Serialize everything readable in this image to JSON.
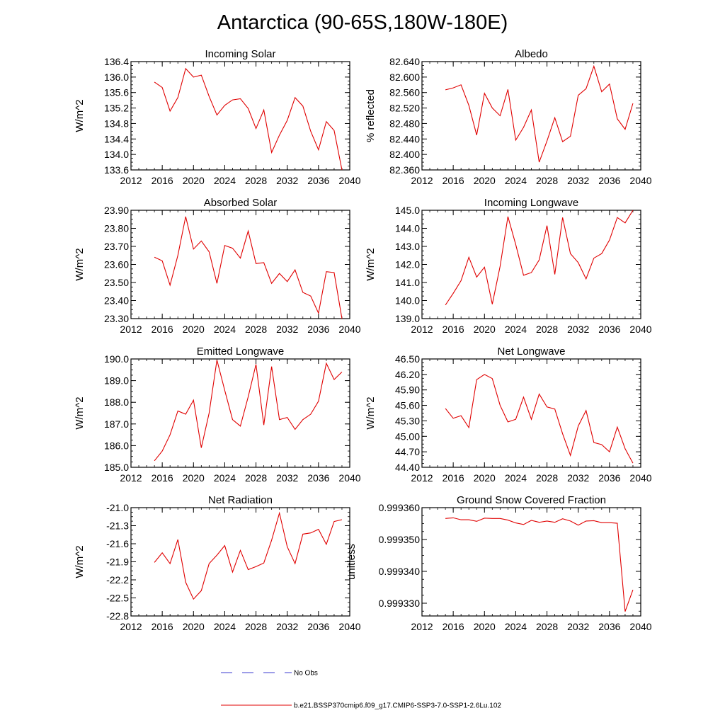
{
  "page": {
    "title": "Antarctica (90-65S,180W-180E)"
  },
  "legend": {
    "items": [
      {
        "label": "No Obs",
        "color": "#3b3bd0",
        "dash": true
      },
      {
        "label": "b.e21.BSSP370cmip6.f09_g17.CMIP6-SSP3-7.0-SSP1-2.6Lu.102",
        "color": "#e00000",
        "dash": false
      }
    ]
  },
  "colors": {
    "series": "#e00000",
    "no_obs": "#3b3bd0",
    "axis": "#000000"
  },
  "chart_data": [
    {
      "id": "incoming-solar",
      "type": "line",
      "title": "Incoming Solar",
      "ylabel": "W/m^2",
      "xlim": [
        2012,
        2040
      ],
      "ylim": [
        133.6,
        136.4
      ],
      "xticks": [
        "2012",
        "2016",
        "2020",
        "2024",
        "2028",
        "2032",
        "2036",
        "2040"
      ],
      "yticks": [
        "133.6",
        "134.0",
        "134.4",
        "134.8",
        "135.2",
        "135.6",
        "136.0",
        "136.4"
      ],
      "x": [
        2015,
        2016,
        2017,
        2018,
        2019,
        2020,
        2021,
        2022,
        2023,
        2024,
        2025,
        2026,
        2027,
        2028,
        2029,
        2030,
        2031,
        2032,
        2033,
        2034,
        2035,
        2036,
        2037,
        2038,
        2039
      ],
      "series": [
        {
          "values": [
            135.87,
            135.73,
            135.12,
            135.47,
            136.22,
            136.0,
            136.05,
            135.5,
            135.02,
            135.27,
            135.41,
            135.44,
            135.19,
            134.67,
            135.15,
            134.05,
            134.5,
            134.88,
            135.47,
            135.25,
            134.6,
            134.12,
            134.85,
            134.62,
            133.6
          ]
        }
      ]
    },
    {
      "id": "albedo",
      "type": "line",
      "title": "Albedo",
      "ylabel": "% reflected",
      "xlim": [
        2012,
        2040
      ],
      "ylim": [
        82.36,
        82.64
      ],
      "xticks": [
        "2012",
        "2016",
        "2020",
        "2024",
        "2028",
        "2032",
        "2036",
        "2040"
      ],
      "yticks": [
        "82.360",
        "82.400",
        "82.440",
        "82.480",
        "82.520",
        "82.560",
        "82.600",
        "82.640"
      ],
      "x": [
        2015,
        2016,
        2017,
        2018,
        2019,
        2020,
        2021,
        2022,
        2023,
        2024,
        2025,
        2026,
        2027,
        2028,
        2029,
        2030,
        2031,
        2032,
        2033,
        2034,
        2035,
        2036,
        2037,
        2038,
        2039
      ],
      "series": [
        {
          "values": [
            82.567,
            82.572,
            82.58,
            82.527,
            82.45,
            82.558,
            82.52,
            82.5,
            82.568,
            82.437,
            82.47,
            82.515,
            82.38,
            82.435,
            82.495,
            82.433,
            82.447,
            82.553,
            82.57,
            82.628,
            82.562,
            82.582,
            82.492,
            82.465,
            82.532
          ]
        }
      ]
    },
    {
      "id": "absorbed-solar",
      "type": "line",
      "title": "Absorbed Solar",
      "ylabel": "W/m^2",
      "xlim": [
        2012,
        2040
      ],
      "ylim": [
        23.3,
        23.9
      ],
      "xticks": [
        "2012",
        "2016",
        "2020",
        "2024",
        "2028",
        "2032",
        "2036",
        "2040"
      ],
      "yticks": [
        "23.30",
        "23.40",
        "23.50",
        "23.60",
        "23.70",
        "23.80",
        "23.90"
      ],
      "x": [
        2015,
        2016,
        2017,
        2018,
        2019,
        2020,
        2021,
        2022,
        2023,
        2024,
        2025,
        2026,
        2027,
        2028,
        2029,
        2030,
        2031,
        2032,
        2033,
        2034,
        2035,
        2036,
        2037,
        2038,
        2039
      ],
      "series": [
        {
          "values": [
            23.64,
            23.62,
            23.485,
            23.65,
            23.865,
            23.685,
            23.73,
            23.67,
            23.495,
            23.705,
            23.69,
            23.635,
            23.785,
            23.605,
            23.61,
            23.495,
            23.55,
            23.505,
            23.57,
            23.445,
            23.425,
            23.33,
            23.56,
            23.555,
            23.3
          ]
        }
      ]
    },
    {
      "id": "incoming-longwave",
      "type": "line",
      "title": "Incoming Longwave",
      "ylabel": "W/m^2",
      "xlim": [
        2012,
        2040
      ],
      "ylim": [
        139.0,
        145.0
      ],
      "xticks": [
        "2012",
        "2016",
        "2020",
        "2024",
        "2028",
        "2032",
        "2036",
        "2040"
      ],
      "yticks": [
        "139.0",
        "140.0",
        "141.0",
        "142.0",
        "143.0",
        "144.0",
        "145.0"
      ],
      "x": [
        2015,
        2016,
        2017,
        2018,
        2019,
        2020,
        2021,
        2022,
        2023,
        2024,
        2025,
        2026,
        2027,
        2028,
        2029,
        2030,
        2031,
        2032,
        2033,
        2034,
        2035,
        2036,
        2037,
        2038,
        2039
      ],
      "series": [
        {
          "values": [
            139.75,
            140.4,
            141.1,
            142.4,
            141.3,
            141.85,
            139.8,
            141.9,
            144.65,
            143.1,
            141.4,
            141.55,
            142.25,
            144.15,
            141.45,
            144.6,
            142.6,
            142.1,
            141.2,
            142.35,
            142.6,
            143.35,
            144.6,
            144.3,
            145.0
          ]
        }
      ]
    },
    {
      "id": "emitted-longwave",
      "type": "line",
      "title": "Emitted Longwave",
      "ylabel": "W/m^2",
      "xlim": [
        2012,
        2040
      ],
      "ylim": [
        185.0,
        190.0
      ],
      "xticks": [
        "2012",
        "2016",
        "2020",
        "2024",
        "2028",
        "2032",
        "2036",
        "2040"
      ],
      "yticks": [
        "185.0",
        "186.0",
        "187.0",
        "188.0",
        "189.0",
        "190.0"
      ],
      "x": [
        2015,
        2016,
        2017,
        2018,
        2019,
        2020,
        2021,
        2022,
        2023,
        2024,
        2025,
        2026,
        2027,
        2028,
        2029,
        2030,
        2031,
        2032,
        2033,
        2034,
        2035,
        2036,
        2037,
        2038,
        2039
      ],
      "series": [
        {
          "values": [
            185.3,
            185.75,
            186.5,
            187.6,
            187.45,
            188.1,
            185.9,
            187.5,
            189.95,
            188.55,
            187.2,
            186.9,
            188.25,
            189.75,
            186.95,
            189.65,
            187.2,
            187.3,
            186.75,
            187.2,
            187.45,
            188.05,
            189.8,
            189.05,
            189.4
          ]
        }
      ]
    },
    {
      "id": "net-longwave",
      "type": "line",
      "title": "Net Longwave",
      "ylabel": "W/m^2",
      "xlim": [
        2012,
        2040
      ],
      "ylim": [
        44.4,
        46.5
      ],
      "xticks": [
        "2012",
        "2016",
        "2020",
        "2024",
        "2028",
        "2032",
        "2036",
        "2040"
      ],
      "yticks": [
        "44.40",
        "44.70",
        "45.00",
        "45.30",
        "45.60",
        "45.90",
        "46.20",
        "46.50"
      ],
      "x": [
        2015,
        2016,
        2017,
        2018,
        2019,
        2020,
        2021,
        2022,
        2023,
        2024,
        2025,
        2026,
        2027,
        2028,
        2029,
        2030,
        2031,
        2032,
        2033,
        2034,
        2035,
        2036,
        2037,
        2038,
        2039
      ],
      "series": [
        {
          "values": [
            45.54,
            45.35,
            45.4,
            45.17,
            46.1,
            46.2,
            46.12,
            45.6,
            45.28,
            45.33,
            45.76,
            45.33,
            45.82,
            45.57,
            45.53,
            45.05,
            44.63,
            45.2,
            45.5,
            44.88,
            44.84,
            44.7,
            45.18,
            44.76,
            44.48
          ]
        }
      ]
    },
    {
      "id": "net-radiation",
      "type": "line",
      "title": "Net Radiation",
      "ylabel": "W/m^2",
      "xlim": [
        2012,
        2040
      ],
      "ylim": [
        -22.8,
        -21.0
      ],
      "xticks": [
        "2012",
        "2016",
        "2020",
        "2024",
        "2028",
        "2032",
        "2036",
        "2040"
      ],
      "yticks": [
        "-22.8",
        "-22.5",
        "-22.2",
        "-21.9",
        "-21.6",
        "-21.3",
        "-21.0"
      ],
      "x": [
        2015,
        2016,
        2017,
        2018,
        2019,
        2020,
        2021,
        2022,
        2023,
        2024,
        2025,
        2026,
        2027,
        2028,
        2029,
        2030,
        2031,
        2032,
        2033,
        2034,
        2035,
        2036,
        2037,
        2038,
        2039
      ],
      "series": [
        {
          "values": [
            -21.91,
            -21.75,
            -21.93,
            -21.53,
            -22.24,
            -22.52,
            -22.38,
            -21.93,
            -21.79,
            -21.63,
            -22.07,
            -21.71,
            -22.03,
            -21.98,
            -21.92,
            -21.54,
            -21.09,
            -21.65,
            -21.93,
            -21.44,
            -21.42,
            -21.36,
            -21.61,
            -21.23,
            -21.2
          ]
        }
      ]
    },
    {
      "id": "ground-snow-covered-fraction",
      "type": "line",
      "title": "Ground Snow Covered Fraction",
      "ylabel": "unitless",
      "xlim": [
        2012,
        2040
      ],
      "ylim": [
        0.999326,
        0.99936
      ],
      "xticks": [
        "2012",
        "2016",
        "2020",
        "2024",
        "2028",
        "2032",
        "2036",
        "2040"
      ],
      "yticks": [
        "0.999330",
        "0.999340",
        "0.999350",
        "0.999360"
      ],
      "x": [
        2015,
        2016,
        2017,
        2018,
        2019,
        2020,
        2021,
        2022,
        2023,
        2024,
        2025,
        2026,
        2027,
        2028,
        2029,
        2030,
        2031,
        2032,
        2033,
        2034,
        2035,
        2036,
        2037,
        2038,
        2039
      ],
      "series": [
        {
          "values": [
            0.9993566,
            0.9993568,
            0.9993562,
            0.9993562,
            0.9993557,
            0.9993567,
            0.9993566,
            0.9993566,
            0.9993561,
            0.9993552,
            0.9993547,
            0.999356,
            0.9993554,
            0.9993558,
            0.9993554,
            0.9993565,
            0.9993558,
            0.9993545,
            0.9993558,
            0.9993559,
            0.9993553,
            0.9993553,
            0.9993551,
            0.9993274,
            0.9993342
          ]
        }
      ]
    }
  ]
}
